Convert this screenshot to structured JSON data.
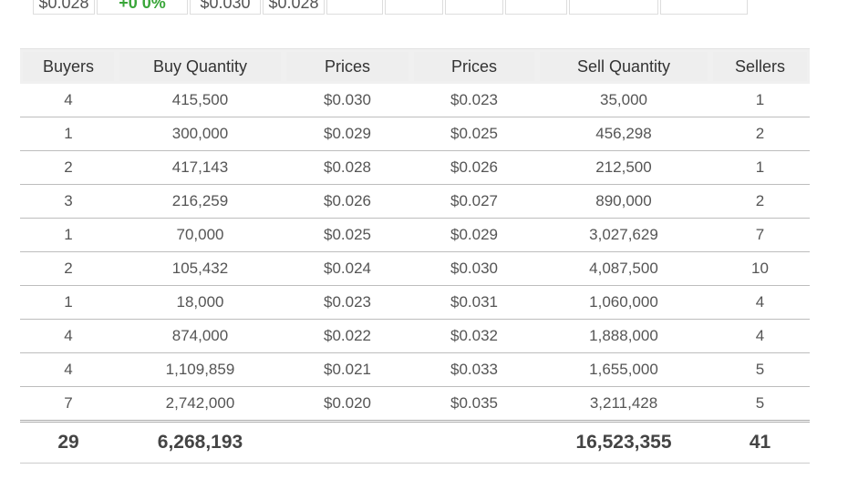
{
  "top_strip": [
    {
      "text": "$0.028",
      "width": 68,
      "green": false
    },
    {
      "text": "+0 0%",
      "width": 100,
      "green": true
    },
    {
      "text": "$0.030",
      "width": 78,
      "green": false
    },
    {
      "text": "$0.028",
      "width": 68,
      "green": false
    },
    {
      "text": "",
      "width": 62,
      "green": false
    },
    {
      "text": "",
      "width": 64,
      "green": false
    },
    {
      "text": "",
      "width": 64,
      "green": false
    },
    {
      "text": "",
      "width": 68,
      "green": false
    },
    {
      "text": "",
      "width": 98,
      "green": false
    },
    {
      "text": "",
      "width": 96,
      "green": false
    }
  ],
  "table": {
    "headers": [
      "Buyers",
      "Buy Quantity",
      "Prices",
      "Prices",
      "Sell Quantity",
      "Sellers"
    ],
    "rows": [
      [
        "4",
        "415,500",
        "$0.030",
        "$0.023",
        "35,000",
        "1"
      ],
      [
        "1",
        "300,000",
        "$0.029",
        "$0.025",
        "456,298",
        "2"
      ],
      [
        "2",
        "417,143",
        "$0.028",
        "$0.026",
        "212,500",
        "1"
      ],
      [
        "3",
        "216,259",
        "$0.026",
        "$0.027",
        "890,000",
        "2"
      ],
      [
        "1",
        "70,000",
        "$0.025",
        "$0.029",
        "3,027,629",
        "7"
      ],
      [
        "2",
        "105,432",
        "$0.024",
        "$0.030",
        "4,087,500",
        "10"
      ],
      [
        "1",
        "18,000",
        "$0.023",
        "$0.031",
        "1,060,000",
        "4"
      ],
      [
        "4",
        "874,000",
        "$0.022",
        "$0.032",
        "1,888,000",
        "4"
      ],
      [
        "4",
        "1,109,859",
        "$0.021",
        "$0.033",
        "1,655,000",
        "5"
      ],
      [
        "7",
        "2,742,000",
        "$0.020",
        "$0.035",
        "3,211,428",
        "5"
      ]
    ],
    "totals": [
      "29",
      "6,268,193",
      "",
      "",
      "16,523,355",
      "41"
    ]
  }
}
